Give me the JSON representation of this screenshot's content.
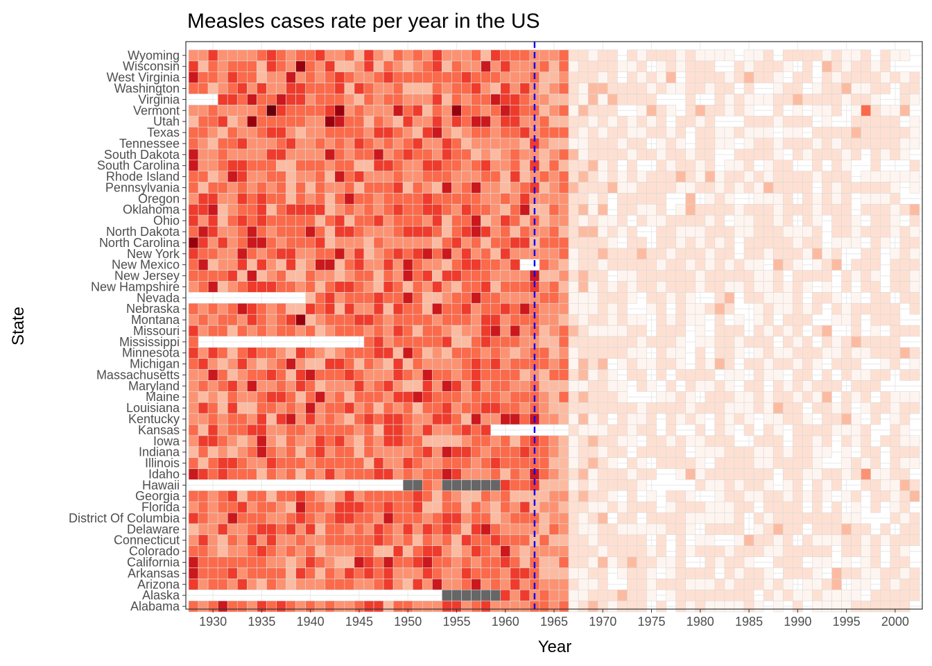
{
  "chart_data": {
    "type": "heatmap",
    "title": "Measles cases rate per year in the US",
    "xlabel": "Year",
    "ylabel": "State",
    "x_ticks": [
      1930,
      1935,
      1940,
      1945,
      1950,
      1955,
      1960,
      1965,
      1970,
      1975,
      1980,
      1985,
      1990,
      1995,
      2000
    ],
    "year_range": [
      1928,
      2002
    ],
    "vaccine_year": 1963,
    "vaccine_line_color": "#0000ff",
    "missing_color": "#666666",
    "palette": [
      "#fff5f0",
      "#fee0d2",
      "#fcbba1",
      "#fc9272",
      "#fb6a4a",
      "#ef3b2c",
      "#cb181d",
      "#99000d",
      "#67000d"
    ],
    "grid": true,
    "states": [
      "Alabama",
      "Alaska",
      "Arizona",
      "Arkansas",
      "California",
      "Colorado",
      "Connecticut",
      "Delaware",
      "District Of Columbia",
      "Florida",
      "Georgia",
      "Hawaii",
      "Idaho",
      "Illinois",
      "Indiana",
      "Iowa",
      "Kansas",
      "Kentucky",
      "Louisiana",
      "Maine",
      "Maryland",
      "Massachusetts",
      "Michigan",
      "Minnesota",
      "Mississippi",
      "Missouri",
      "Montana",
      "Nebraska",
      "Nevada",
      "New Hampshire",
      "New Jersey",
      "New Mexico",
      "New York",
      "North Carolina",
      "North Dakota",
      "Ohio",
      "Oklahoma",
      "Oregon",
      "Pennsylvania",
      "Rhode Island",
      "South Carolina",
      "South Dakota",
      "Tennessee",
      "Texas",
      "Utah",
      "Vermont",
      "Virginia",
      "Washington",
      "West Virginia",
      "Wisconsin",
      "Wyoming"
    ],
    "highlights": [
      {
        "state": "Vermont",
        "year": 1936,
        "level": 8
      },
      {
        "state": "Vermont",
        "year": 1943,
        "level": 7
      },
      {
        "state": "Vermont",
        "year": 1955,
        "level": 7
      },
      {
        "state": "Vermont",
        "year": 1949,
        "level": 6
      },
      {
        "state": "Utah",
        "year": 1934,
        "level": 7
      },
      {
        "state": "Utah",
        "year": 1942,
        "level": 7
      },
      {
        "state": "Utah",
        "year": 1943,
        "level": 6
      },
      {
        "state": "Utah",
        "year": 1957,
        "level": 6
      },
      {
        "state": "Wisconsin",
        "year": 1939,
        "level": 7
      },
      {
        "state": "Wisconsin",
        "year": 1958,
        "level": 6
      },
      {
        "state": "Montana",
        "year": 1939,
        "level": 7
      },
      {
        "state": "North Carolina",
        "year": 1928,
        "level": 7
      },
      {
        "state": "North Carolina",
        "year": 1934,
        "level": 6
      },
      {
        "state": "Rhode Island",
        "year": 1932,
        "level": 6
      },
      {
        "state": "Michigan",
        "year": 1938,
        "level": 6
      },
      {
        "state": "Maryland",
        "year": 1934,
        "level": 6
      },
      {
        "state": "South Carolina",
        "year": 1928,
        "level": 6
      },
      {
        "state": "Vermont",
        "year": 1997,
        "level": 4
      },
      {
        "state": "Idaho",
        "year": 1997,
        "level": 3
      }
    ],
    "missing_cells": [
      {
        "state": "Hawaii",
        "years": [
          1950,
          1951,
          1954,
          1955,
          1956,
          1957,
          1958,
          1959
        ]
      },
      {
        "state": "Alaska",
        "years": [
          1954,
          1955,
          1956,
          1957,
          1958,
          1959
        ]
      }
    ],
    "no_data_spans": [
      {
        "state": "Virginia",
        "from": 1928,
        "to": 1930
      },
      {
        "state": "Nevada",
        "from": 1928,
        "to": 1939
      },
      {
        "state": "Mississippi",
        "from": 1929,
        "to": 1945
      },
      {
        "state": "Hawaii",
        "from": 1928,
        "to": 1949
      },
      {
        "state": "Alaska",
        "from": 1928,
        "to": 1953
      },
      {
        "state": "Kansas",
        "from": 1959,
        "to": 1966
      },
      {
        "state": "New Mexico",
        "from": 1962,
        "to": 1963
      }
    ]
  }
}
